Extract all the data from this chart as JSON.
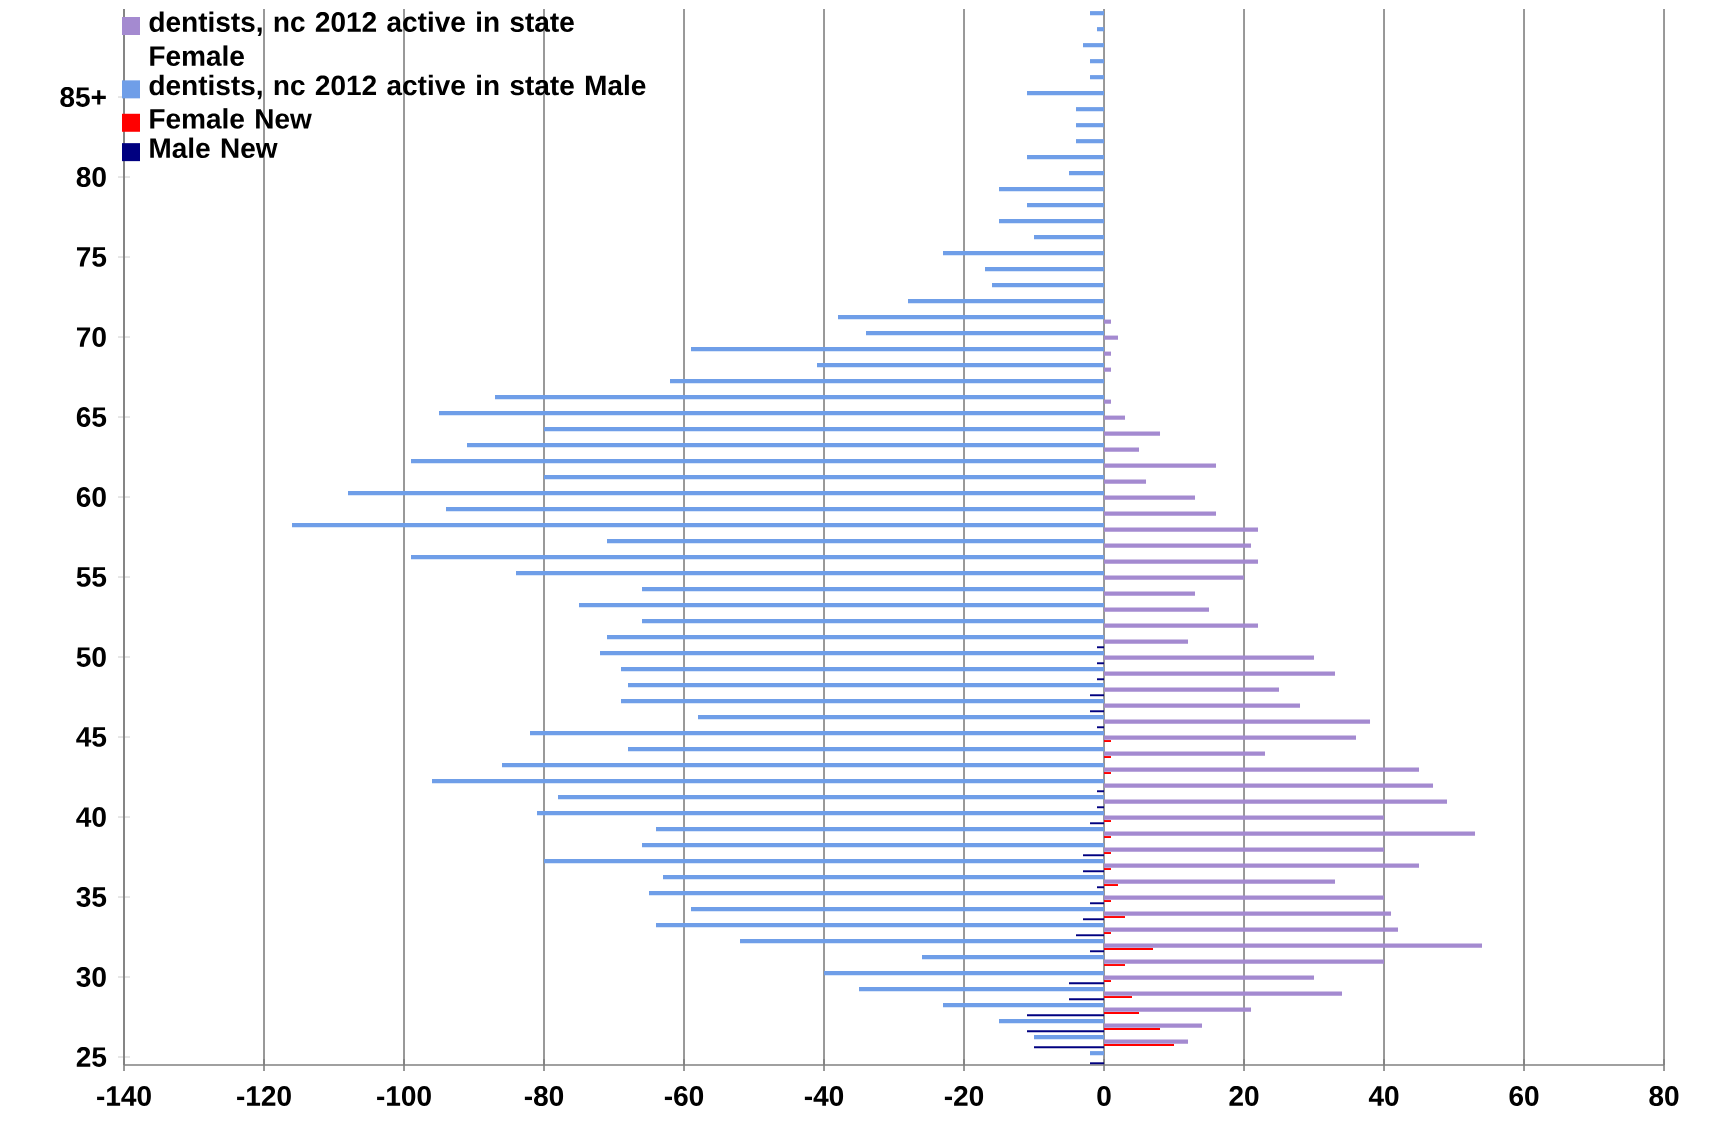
{
  "chart_data": {
    "type": "bar",
    "orientation": "horizontal",
    "categories": [
      null,
      null,
      null,
      null,
      null,
      "85+",
      null,
      null,
      null,
      null,
      "80",
      null,
      null,
      null,
      null,
      "75",
      null,
      null,
      null,
      null,
      "70",
      null,
      null,
      null,
      null,
      "65",
      null,
      null,
      null,
      null,
      "60",
      null,
      null,
      null,
      null,
      "55",
      null,
      null,
      null,
      null,
      "50",
      null,
      null,
      null,
      null,
      "45",
      null,
      null,
      null,
      null,
      "40",
      null,
      null,
      null,
      null,
      "35",
      null,
      null,
      null,
      null,
      "30",
      null,
      null,
      null,
      null,
      "25"
    ],
    "series": [
      {
        "name": "dentists, nc 2012 active in state Female",
        "color": "#a48ad0",
        "values": [
          null,
          null,
          null,
          null,
          null,
          null,
          null,
          null,
          null,
          null,
          null,
          null,
          null,
          null,
          null,
          null,
          null,
          null,
          null,
          1,
          2,
          1,
          1,
          null,
          1,
          3,
          8,
          5,
          16,
          6,
          13,
          16,
          22,
          21,
          22,
          20,
          13,
          15,
          22,
          12,
          30,
          33,
          25,
          28,
          38,
          36,
          23,
          45,
          47,
          49,
          40,
          53,
          40,
          45,
          33,
          40,
          41,
          42,
          54,
          40,
          30,
          34,
          21,
          14,
          12,
          null
        ]
      },
      {
        "name": "dentists, nc 2012 active in state Male",
        "color": "#6f9ee8",
        "values": [
          -2,
          -1,
          -3,
          -2,
          -2,
          -11,
          -4,
          -4,
          -4,
          -11,
          -5,
          -15,
          -11,
          -15,
          -10,
          -23,
          -17,
          -16,
          -28,
          -38,
          -34,
          -59,
          -41,
          -62,
          -87,
          -95,
          -80,
          -91,
          -99,
          -80,
          -108,
          -94,
          -116,
          -71,
          -99,
          -84,
          -66,
          -75,
          -66,
          -71,
          -72,
          -69,
          -68,
          -69,
          -58,
          -82,
          -68,
          -86,
          -96,
          -78,
          -81,
          -64,
          -66,
          -80,
          -63,
          -65,
          -59,
          -64,
          -52,
          -26,
          -40,
          -35,
          -23,
          -15,
          -10,
          -2
        ]
      },
      {
        "name": "Female New",
        "color": "#ff0000",
        "values": [
          null,
          null,
          null,
          null,
          null,
          null,
          null,
          null,
          null,
          null,
          null,
          null,
          null,
          null,
          null,
          null,
          null,
          null,
          null,
          null,
          null,
          null,
          null,
          null,
          null,
          null,
          null,
          null,
          null,
          null,
          null,
          null,
          null,
          null,
          null,
          null,
          null,
          null,
          null,
          null,
          null,
          null,
          null,
          null,
          null,
          1,
          1,
          1,
          null,
          null,
          1,
          1,
          1,
          1,
          2,
          1,
          3,
          1,
          7,
          3,
          1,
          4,
          5,
          8,
          10,
          null
        ]
      },
      {
        "name": "Male New",
        "color": "#000080",
        "values": [
          null,
          null,
          null,
          null,
          null,
          null,
          null,
          null,
          null,
          null,
          null,
          null,
          null,
          null,
          null,
          null,
          null,
          null,
          null,
          null,
          null,
          null,
          null,
          null,
          null,
          null,
          null,
          null,
          null,
          null,
          null,
          null,
          null,
          null,
          null,
          null,
          null,
          null,
          null,
          -1,
          -1,
          -1,
          -2,
          -2,
          -1,
          null,
          null,
          null,
          -1,
          -1,
          -2,
          null,
          -3,
          -3,
          -1,
          -2,
          -3,
          -4,
          -2,
          null,
          -5,
          -5,
          -11,
          -11,
          -10,
          -2
        ]
      }
    ],
    "xlim": [
      -140,
      80
    ],
    "xticks": [
      -140,
      -120,
      -100,
      -80,
      -60,
      -40,
      -20,
      0,
      20,
      40,
      60,
      80
    ],
    "grid": "x",
    "legend": "top left"
  }
}
